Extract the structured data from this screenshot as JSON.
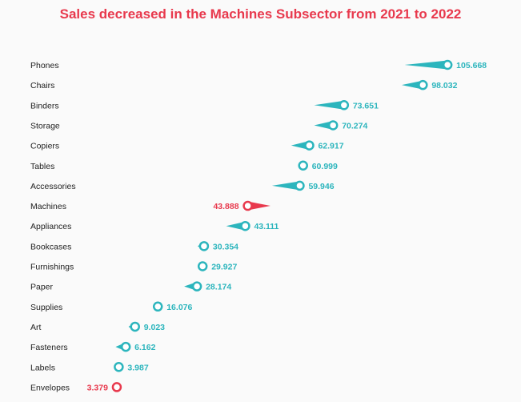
{
  "chart_data": {
    "type": "dot-arrow",
    "title": "Sales decreased in the Machines Subsector from 2021 to 2022",
    "colors": {
      "increase": "#2cb5bd",
      "decrease": "#e8394d",
      "title": "#e8394d"
    },
    "categories": [
      "Phones",
      "Chairs",
      "Binders",
      "Storage",
      "Copiers",
      "Tables",
      "Accessories",
      "Machines",
      "Appliances",
      "Bookcases",
      "Furnishings",
      "Paper",
      "Supplies",
      "Art",
      "Fasteners",
      "Labels",
      "Envelopes"
    ],
    "series": [
      {
        "values_2022": [
          105.668,
          98.032,
          73.651,
          70.274,
          62.917,
          60.999,
          59.946,
          43.888,
          43.111,
          30.354,
          29.927,
          28.174,
          16.076,
          9.023,
          6.162,
          3.987,
          3.379
        ]
      },
      {
        "values_2021": [
          92.4,
          91.5,
          64.4,
          64.4,
          57.3,
          61.0,
          51.4,
          50.9,
          37.2,
          28.4,
          29.9,
          24.2,
          15.3,
          7.0,
          3.0,
          4.0,
          3.4
        ]
      }
    ],
    "trend": [
      "up",
      "up",
      "up",
      "up",
      "up",
      "flat",
      "up",
      "down",
      "up",
      "up",
      "flat",
      "up",
      "up",
      "up",
      "up",
      "flat",
      "down"
    ]
  }
}
